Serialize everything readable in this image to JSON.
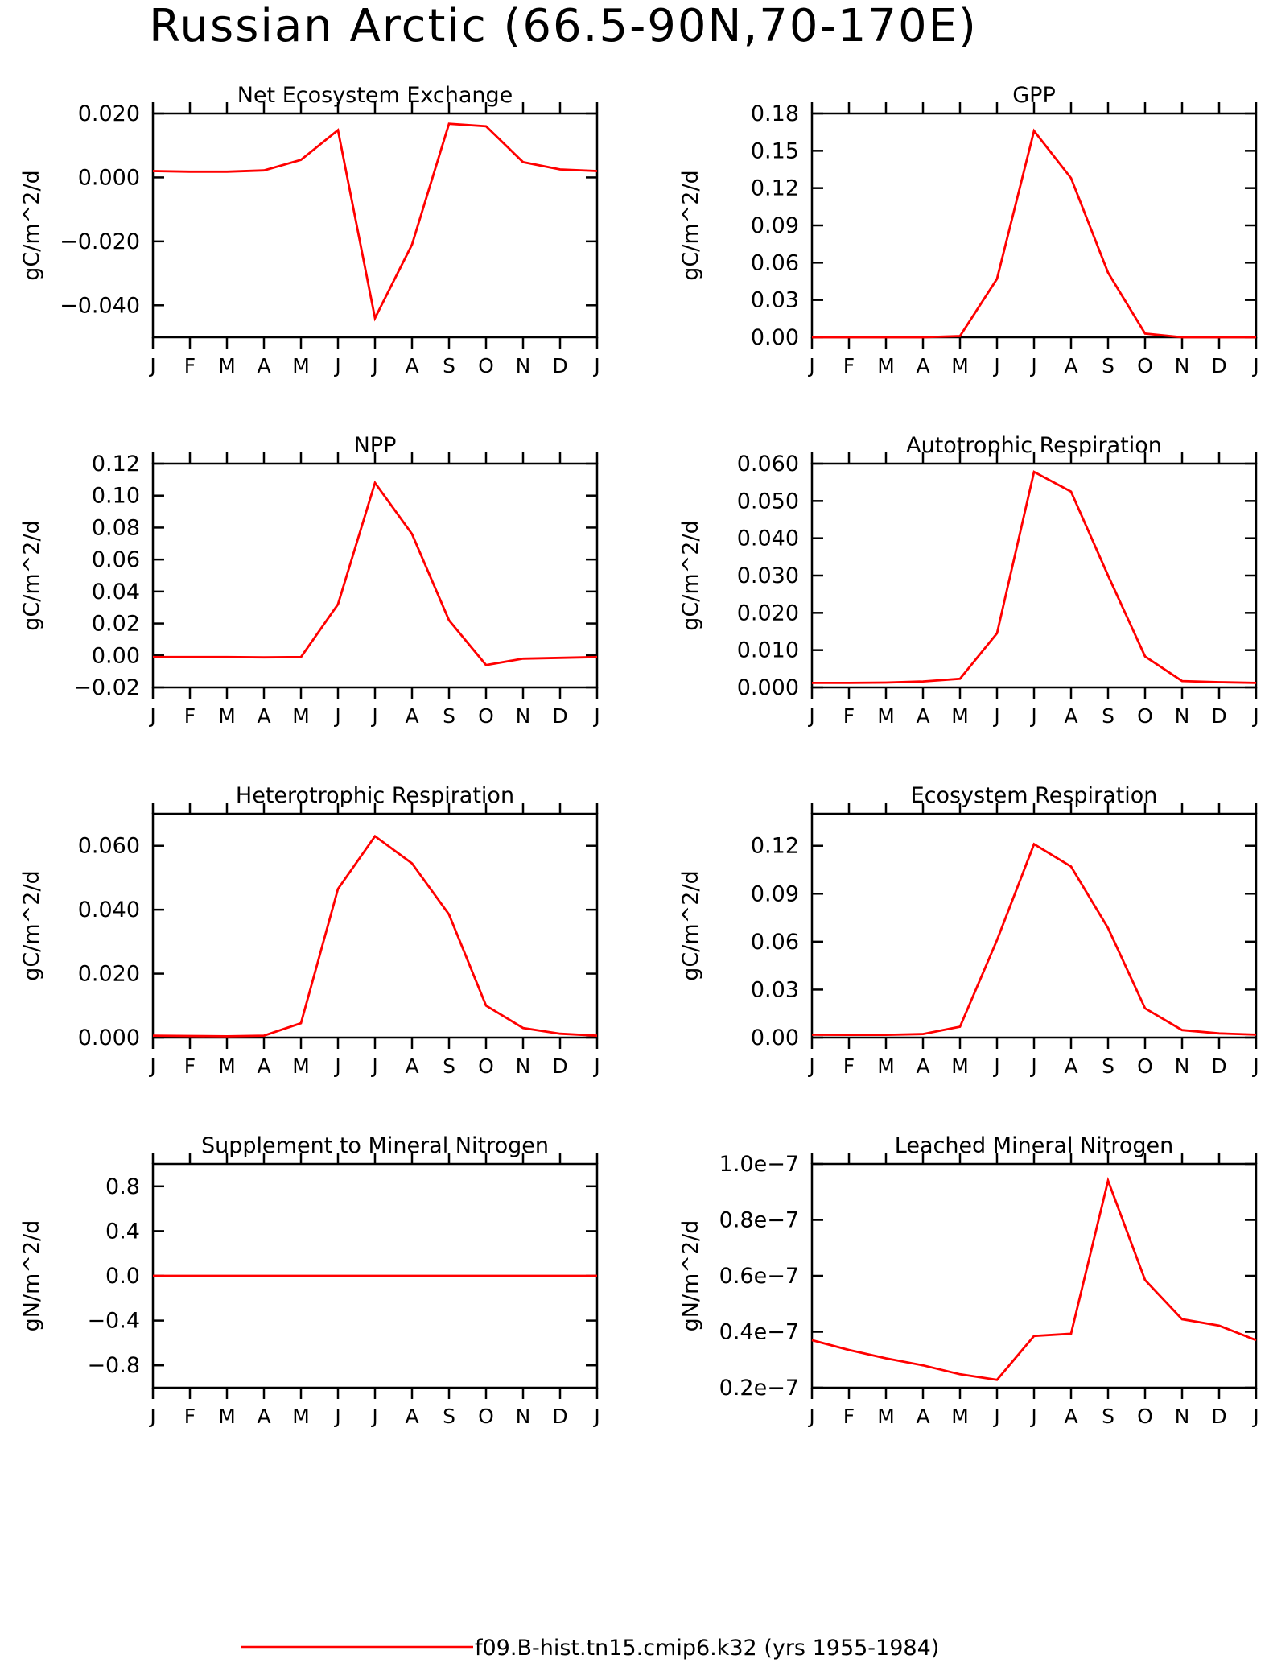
{
  "title": "Russian Arctic (66.5-90N,70-170E)",
  "legend": {
    "label": "f09.B-hist.tn15.cmip6.k32 (yrs 1955-1984)",
    "color": "#ff0000"
  },
  "chart_data": [
    {
      "type": "line",
      "title": "Net Ecosystem Exchange",
      "ylabel": "gC/m^2/d",
      "x": [
        "J",
        "F",
        "M",
        "A",
        "M",
        "J",
        "J",
        "A",
        "S",
        "O",
        "N",
        "D",
        "J"
      ],
      "series": [
        {
          "values": [
            0.002,
            0.0018,
            0.0018,
            0.0022,
            0.0055,
            0.0148,
            -0.044,
            -0.021,
            0.0168,
            0.016,
            0.0048,
            0.0025,
            0.002
          ]
        }
      ],
      "ylim": [
        -0.05,
        0.02
      ],
      "yticks": [
        0.02,
        0.0,
        -0.02,
        -0.04
      ],
      "ytick_labels": [
        "0.020",
        "0.000",
        "−0.020",
        "−0.040"
      ]
    },
    {
      "type": "line",
      "title": "GPP",
      "ylabel": "gC/m^2/d",
      "x": [
        "J",
        "F",
        "M",
        "A",
        "M",
        "J",
        "J",
        "A",
        "S",
        "O",
        "N",
        "D",
        "J"
      ],
      "series": [
        {
          "values": [
            0.0,
            0.0,
            0.0,
            0.0,
            0.001,
            0.047,
            0.166,
            0.128,
            0.052,
            0.003,
            0.0,
            0.0,
            0.0
          ]
        }
      ],
      "ylim": [
        0.0,
        0.18
      ],
      "yticks": [
        0.18,
        0.15,
        0.12,
        0.09,
        0.06,
        0.03,
        0.0
      ],
      "ytick_labels": [
        "0.18",
        "0.15",
        "0.12",
        "0.09",
        "0.06",
        "0.03",
        "0.00"
      ]
    },
    {
      "type": "line",
      "title": "NPP",
      "ylabel": "gC/m^2/d",
      "x": [
        "J",
        "F",
        "M",
        "A",
        "M",
        "J",
        "J",
        "A",
        "S",
        "O",
        "N",
        "D",
        "J"
      ],
      "series": [
        {
          "values": [
            -0.001,
            -0.001,
            -0.001,
            -0.0012,
            -0.001,
            0.032,
            0.108,
            0.076,
            0.022,
            -0.006,
            -0.002,
            -0.0015,
            -0.001
          ]
        }
      ],
      "ylim": [
        -0.02,
        0.12
      ],
      "yticks": [
        0.12,
        0.1,
        0.08,
        0.06,
        0.04,
        0.02,
        0.0,
        -0.02
      ],
      "ytick_labels": [
        "0.12",
        "0.10",
        "0.08",
        "0.06",
        "0.04",
        "0.02",
        "0.00",
        "−0.02"
      ]
    },
    {
      "type": "line",
      "title": "Autotrophic Respiration",
      "ylabel": "gC/m^2/d",
      "x": [
        "J",
        "F",
        "M",
        "A",
        "M",
        "J",
        "J",
        "A",
        "S",
        "O",
        "N",
        "D",
        "J"
      ],
      "series": [
        {
          "values": [
            0.0012,
            0.0012,
            0.0013,
            0.0016,
            0.0023,
            0.0145,
            0.0578,
            0.0525,
            0.03,
            0.0083,
            0.0017,
            0.0014,
            0.0012
          ]
        }
      ],
      "ylim": [
        0.0,
        0.06
      ],
      "yticks": [
        0.06,
        0.05,
        0.04,
        0.03,
        0.02,
        0.01,
        0.0
      ],
      "ytick_labels": [
        "0.060",
        "0.050",
        "0.040",
        "0.030",
        "0.020",
        "0.010",
        "0.000"
      ]
    },
    {
      "type": "line",
      "title": "Heterotrophic Respiration",
      "ylabel": "gC/m^2/d",
      "x": [
        "J",
        "F",
        "M",
        "A",
        "M",
        "J",
        "J",
        "A",
        "S",
        "O",
        "N",
        "D",
        "J"
      ],
      "series": [
        {
          "values": [
            0.0006,
            0.0005,
            0.0004,
            0.0006,
            0.0045,
            0.0465,
            0.063,
            0.0545,
            0.0385,
            0.01,
            0.003,
            0.0012,
            0.0006
          ]
        }
      ],
      "ylim": [
        0.0,
        0.07
      ],
      "yticks": [
        0.06,
        0.04,
        0.02,
        0.0
      ],
      "ytick_labels": [
        "0.060",
        "0.040",
        "0.020",
        "0.000"
      ]
    },
    {
      "type": "line",
      "title": "Ecosystem Respiration",
      "ylabel": "gC/m^2/d",
      "x": [
        "J",
        "F",
        "M",
        "A",
        "M",
        "J",
        "J",
        "A",
        "S",
        "O",
        "N",
        "D",
        "J"
      ],
      "series": [
        {
          "values": [
            0.0018,
            0.0017,
            0.0017,
            0.0022,
            0.0068,
            0.061,
            0.121,
            0.107,
            0.0685,
            0.0183,
            0.0047,
            0.0026,
            0.0018
          ]
        }
      ],
      "ylim": [
        0.0,
        0.14
      ],
      "yticks": [
        0.12,
        0.09,
        0.06,
        0.03,
        0.0
      ],
      "ytick_labels": [
        "0.12",
        "0.09",
        "0.06",
        "0.03",
        "0.00"
      ]
    },
    {
      "type": "line",
      "title": "Supplement to Mineral Nitrogen",
      "ylabel": "gN/m^2/d",
      "x": [
        "J",
        "F",
        "M",
        "A",
        "M",
        "J",
        "J",
        "A",
        "S",
        "O",
        "N",
        "D",
        "J"
      ],
      "series": [
        {
          "values": [
            0,
            0,
            0,
            0,
            0,
            0,
            0,
            0,
            0,
            0,
            0,
            0,
            0
          ]
        }
      ],
      "ylim": [
        -1.0,
        1.0
      ],
      "yticks": [
        0.8,
        0.4,
        0.0,
        -0.4,
        -0.8
      ],
      "ytick_labels": [
        "0.8",
        "0.4",
        "0.0",
        "−0.4",
        "−0.8"
      ]
    },
    {
      "type": "line",
      "title": "Leached Mineral Nitrogen",
      "ylabel": "gN/m^2/d",
      "x": [
        "J",
        "F",
        "M",
        "A",
        "M",
        "J",
        "J",
        "A",
        "S",
        "O",
        "N",
        "D",
        "J"
      ],
      "series": [
        {
          "values": [
            3.7e-08,
            3.35e-08,
            3.05e-08,
            2.8e-08,
            2.48e-08,
            2.28e-08,
            3.85e-08,
            3.93e-08,
            9.4e-08,
            5.85e-08,
            4.45e-08,
            4.22e-08,
            3.7e-08
          ]
        }
      ],
      "ylim": [
        2e-08,
        1e-07
      ],
      "yticks": [
        1e-07,
        8e-08,
        6e-08,
        4e-08,
        2e-08
      ],
      "ytick_labels": [
        "1.0e−7",
        "0.8e−7",
        "0.6e−7",
        "0.4e−7",
        "0.2e−7"
      ]
    }
  ]
}
